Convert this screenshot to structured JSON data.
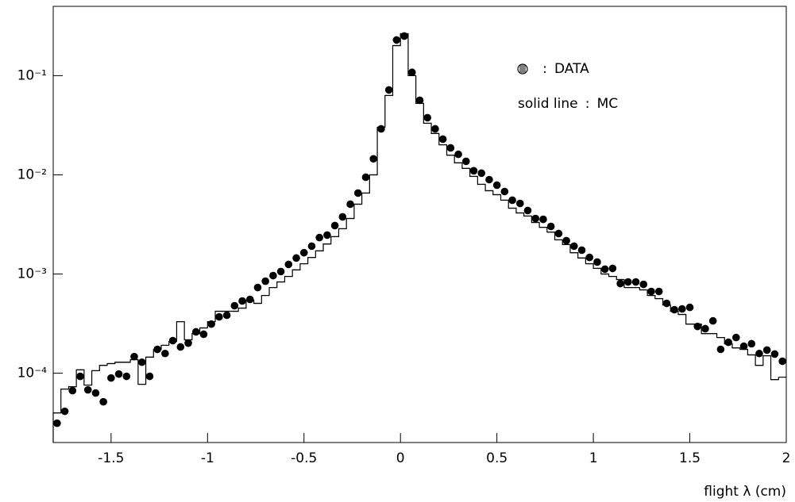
{
  "chart_data": {
    "type": "histogram",
    "x_label": "flight λ (cm)",
    "bins": [
      -1.8,
      -1.76,
      -1.72,
      -1.68,
      -1.64,
      -1.6,
      -1.56,
      -1.52,
      -1.48,
      -1.44,
      -1.4,
      -1.36,
      -1.32,
      -1.28,
      -1.24,
      -1.2,
      -1.16,
      -1.12,
      -1.08,
      -1.04,
      -1,
      -0.96,
      -0.92,
      -0.88,
      -0.84,
      -0.8,
      -0.76,
      -0.72,
      -0.68,
      -0.64,
      -0.6,
      -0.56,
      -0.52,
      -0.48,
      -0.44,
      -0.4,
      -0.36,
      -0.32,
      -0.28,
      -0.24,
      -0.2,
      -0.16,
      -0.12,
      -0.08,
      -0.04,
      0,
      0.04,
      0.08,
      0.12,
      0.16,
      0.2,
      0.24,
      0.28,
      0.32,
      0.36,
      0.4,
      0.44,
      0.48,
      0.52,
      0.56,
      0.6,
      0.64,
      0.68,
      0.72,
      0.76,
      0.8,
      0.84,
      0.88,
      0.92,
      0.96,
      1,
      1.04,
      1.08,
      1.12,
      1.16,
      1.2,
      1.24,
      1.28,
      1.32,
      1.36,
      1.4,
      1.44,
      1.48,
      1.52,
      1.56,
      1.6,
      1.64,
      1.68,
      1.72,
      1.76,
      1.8,
      1.84,
      1.88,
      1.92,
      1.96,
      2
    ],
    "series": [
      {
        "name": "DATA",
        "style": "points",
        "color": "#000000",
        "values": [
          3.13e-05,
          4.13e-05,
          6.67e-05,
          9.29e-05,
          6.79e-05,
          6.31e-05,
          5.15e-05,
          8.95e-05,
          9.8e-05,
          9.3e-05,
          0.000147,
          0.000129,
          9.3e-05,
          0.000174,
          0.000158,
          0.000213,
          0.000184,
          0.000201,
          0.000261,
          0.000247,
          0.000313,
          0.00037,
          0.000384,
          0.000479,
          0.000535,
          0.000555,
          0.000731,
          0.000847,
          0.000964,
          0.00106,
          0.00125,
          0.00145,
          0.00164,
          0.00191,
          0.00233,
          0.00247,
          0.00308,
          0.00377,
          0.00506,
          0.00655,
          0.00946,
          0.0145,
          0.0291,
          0.0718,
          0.229,
          0.251,
          0.108,
          0.0565,
          0.0377,
          0.0291,
          0.0229,
          0.0187,
          0.0161,
          0.0137,
          0.011,
          0.0104,
          0.00895,
          0.00787,
          0.00679,
          0.00555,
          0.00515,
          0.00437,
          0.00363,
          0.00356,
          0.00302,
          0.00256,
          0.00217,
          0.00191,
          0.00174,
          0.00147,
          0.00132,
          0.00112,
          0.00114,
          0.000802,
          0.000832,
          0.000832,
          0.000787,
          0.000667,
          0.000667,
          0.000506,
          0.000437,
          0.000445,
          0.000461,
          0.000296,
          0.000281,
          0.000337,
          0.000174,
          0.000205,
          0.000229,
          0.000187,
          0.000198,
          0.000158,
          0.000171,
          0.000156,
          0.000132
        ]
      },
      {
        "name": "MC",
        "legend_key": "solid line",
        "style": "step",
        "color": "#000000",
        "values": [
          3.98e-05,
          6.92e-05,
          7.31e-05,
          0.000108,
          7.59e-05,
          0.000106,
          0.00012,
          0.000125,
          0.000129,
          0.000129,
          0.000137,
          7.73e-05,
          0.000145,
          0.000174,
          0.000191,
          0.000209,
          0.000331,
          0.000217,
          0.000251,
          0.000286,
          0.000331,
          0.000421,
          0.000421,
          0.000421,
          0.000453,
          0.000545,
          0.000506,
          0.000608,
          0.000731,
          0.000832,
          0.000946,
          0.0011,
          0.00127,
          0.00147,
          0.00171,
          0.00201,
          0.00238,
          0.00286,
          0.00363,
          0.00506,
          0.00655,
          0.01,
          0.0302,
          0.0631,
          0.201,
          0.265,
          0.1,
          0.0525,
          0.0331,
          0.0261,
          0.0201,
          0.0158,
          0.0132,
          0.0116,
          0.00964,
          0.00802,
          0.00692,
          0.00631,
          0.00555,
          0.00461,
          0.00413,
          0.00384,
          0.00331,
          0.00296,
          0.00265,
          0.00221,
          0.00198,
          0.00164,
          0.00145,
          0.00127,
          0.00114,
          0.001,
          0.000946,
          0.000879,
          0.000731,
          0.000731,
          0.000692,
          0.000608,
          0.000565,
          0.000488,
          0.000421,
          0.000391,
          0.000313,
          0.000313,
          0.000251,
          0.000251,
          0.000229,
          0.000198,
          0.00018,
          0.000174,
          0.000153,
          0.00012,
          0.00015,
          8.63e-05,
          9.12e-05
        ]
      }
    ],
    "xlim": [
      -1.8,
      2
    ],
    "xticks": [
      -1.5,
      -1,
      -0.5,
      0,
      0.5,
      1,
      1.5,
      2
    ],
    "ylim": [
      2e-05,
      0.5
    ],
    "yscale": "log",
    "yticks": [
      {
        "value": 0.1,
        "label": "10⁻¹"
      },
      {
        "value": 0.01,
        "label": "10⁻²"
      },
      {
        "value": 0.001,
        "label": "10⁻³"
      },
      {
        "value": 0.0001,
        "label": "10⁻⁴"
      }
    ],
    "legend": "upper right"
  }
}
